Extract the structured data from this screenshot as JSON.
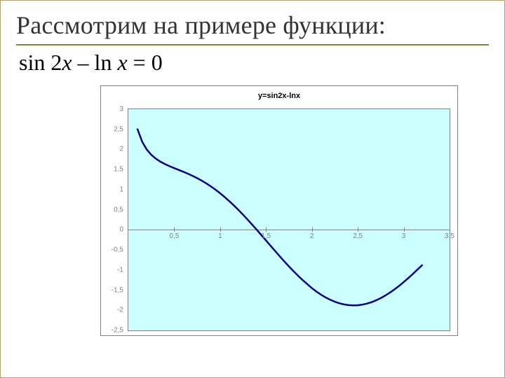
{
  "colors": {
    "frame": "#b0a070",
    "title_rule": "#7a8a3a",
    "text": "#333333",
    "plot_bg": "#ccffff",
    "plot_border": "#808080",
    "grid_tick": "#808080",
    "series": "#00008b",
    "axis_line": "#808080",
    "label": "#808080"
  },
  "title": "Рассмотрим на примере функции:",
  "equation_html": "sin 2<i>x</i> – ln <i>x</i> = 0",
  "equation_parts": {
    "prefix": "sin 2",
    "var1": "x",
    "mid": " – ln ",
    "var2": "x",
    "suffix": " = 0"
  },
  "chart": {
    "type": "line",
    "title": "y=sin2x-lnx",
    "title_fontsize": 11,
    "label_fontsize": 10,
    "font_family_labels": "Arial",
    "background_color": "#ccffff",
    "border_color": "#808080",
    "series_color": "#00008b",
    "line_width": 2.5,
    "xlim": [
      0,
      3.5
    ],
    "ylim": [
      -2.5,
      3
    ],
    "yticks": [
      -2.5,
      -2,
      -1.5,
      -1,
      -0.5,
      0,
      0.5,
      1,
      1.5,
      2,
      2.5,
      3
    ],
    "ytick_labels": [
      "-2,5",
      "-2",
      "-1,5",
      "-1",
      "-0,5",
      "0",
      "0,5",
      "1",
      "1,5",
      "2",
      "2,5",
      "3"
    ],
    "xticks": [
      0,
      0.5,
      1,
      1.5,
      2,
      2.5,
      3,
      3.5
    ],
    "xtick_labels": [
      "0",
      "0,5",
      "1",
      "1,5",
      "2",
      "2,5",
      "3",
      "3,5"
    ],
    "xtick_marks": true,
    "series": {
      "x": [
        0.1,
        0.15,
        0.2,
        0.25,
        0.3,
        0.35,
        0.4,
        0.45,
        0.5,
        0.55,
        0.6,
        0.65,
        0.7,
        0.75,
        0.8,
        0.85,
        0.9,
        0.95,
        1.0,
        1.05,
        1.1,
        1.15,
        1.2,
        1.25,
        1.3,
        1.35,
        1.4,
        1.45,
        1.5,
        1.55,
        1.6,
        1.65,
        1.7,
        1.75,
        1.8,
        1.85,
        1.9,
        1.95,
        2.0,
        2.05,
        2.1,
        2.15,
        2.2,
        2.25,
        2.3,
        2.35,
        2.4,
        2.45,
        2.5,
        2.55,
        2.6,
        2.65,
        2.7,
        2.75,
        2.8,
        2.85,
        2.9,
        2.95,
        3.0,
        3.05,
        3.1,
        3.15,
        3.2
      ],
      "y": [
        2.501,
        2.193,
        1.999,
        1.866,
        1.769,
        1.694,
        1.634,
        1.582,
        1.535,
        1.489,
        1.443,
        1.394,
        1.342,
        1.285,
        1.223,
        1.154,
        1.079,
        0.998,
        0.909,
        0.815,
        0.713,
        0.606,
        0.493,
        0.375,
        0.253,
        0.127,
        -0.002,
        -0.133,
        -0.264,
        -0.397,
        -0.528,
        -0.658,
        -0.786,
        -0.909,
        -1.03,
        -1.143,
        -1.251,
        -1.351,
        -1.45,
        -1.536,
        -1.613,
        -1.681,
        -1.739,
        -1.787,
        -1.827,
        -1.854,
        -1.871,
        -1.877,
        -1.875,
        -1.859,
        -1.833,
        -1.798,
        -1.751,
        -1.697,
        -1.632,
        -1.56,
        -1.479,
        -1.393,
        -1.298,
        -1.199,
        -1.095,
        -0.987,
        -0.88
      ]
    }
  }
}
